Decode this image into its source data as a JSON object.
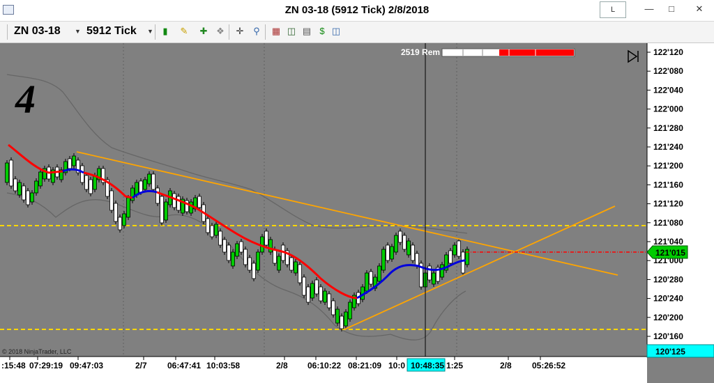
{
  "window": {
    "title": "ZN 03-18 (5912 Tick)  2/8/2018",
    "layout_button": "L"
  },
  "toolbar": {
    "instrument": "ZN 03-18",
    "interval": "5912 Tick",
    "icons": [
      "candlestick-style-icon",
      "pencil-draw-icon",
      "add-indicator-icon",
      "strategy-icon",
      "crosshair-icon",
      "zoom-icon",
      "data-box-icon",
      "chart-trader-icon",
      "properties-icon",
      "dollar-icon",
      "layout-icon"
    ]
  },
  "chart": {
    "big_label": "4",
    "bars_remaining": "2519 Rem",
    "copyright": "© 2018 NinjaTrader, LLC",
    "price_axis": [
      "122'120",
      "122'080",
      "122'040",
      "122'000",
      "121'280",
      "121'240",
      "121'200",
      "121'160",
      "121'120",
      "121'080",
      "121'040",
      "121'000",
      "120'280",
      "120'240",
      "120'200",
      "120'160"
    ],
    "last_price": "121'015",
    "bottom_price": "120'125",
    "time_axis": [
      ":15:48",
      "07:29:19",
      "09:47:03",
      "2/7",
      "06:47:41",
      "10:03:58",
      "2/8",
      "06:10:22",
      "08:21:09",
      "10:0",
      "1:25",
      "2/8",
      "05:26:52"
    ],
    "crosshair_time": "10:48:35",
    "colors": {
      "background": "#808080",
      "up_bar": "#00cc00",
      "down_bar": "#ffffff",
      "ma_down": "#ff0000",
      "ma_up": "#0000ff",
      "trendline": "#ffa500",
      "horizontal_level": "#ffd700",
      "last_price_marker": "#00cc00"
    }
  }
}
